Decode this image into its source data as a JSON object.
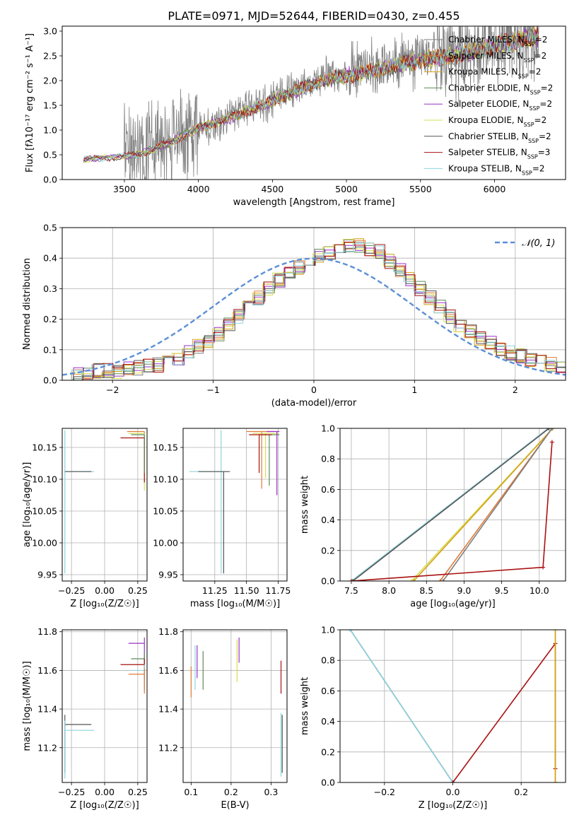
{
  "figure": {
    "title": "PLATE=0971, MJD=52644, FIBERID=0430, z=0.455",
    "colors": {
      "Chabrier MILES": "#7f7f7f",
      "Salpeter MILES": "#e07b39",
      "Kroupa MILES": "#d4a017",
      "Chabrier ELODIE": "#5f8a5a",
      "Salpeter ELODIE": "#9b30c8",
      "Kroupa ELODIE": "#d6df50",
      "Chabrier STELIB": "#555555",
      "Salpeter STELIB": "#aa1111",
      "Kroupa STELIB": "#8fd3de",
      "data": "#808080",
      "normal": "#5b8fd6"
    }
  },
  "chart_data": [
    {
      "id": "spectrum",
      "type": "line",
      "title": "PLATE=0971, MJD=52644, FIBERID=0430, z=0.455",
      "xlabel": "wavelength [Angstrom, rest frame]",
      "ylabel": "Flux [fλ10⁻¹⁷ erg cm⁻² s⁻¹ A⁻¹]",
      "xlim": [
        3080,
        6480
      ],
      "ylim": [
        0,
        3.1
      ],
      "xticks": [
        3500,
        4000,
        4500,
        5000,
        5500,
        6000
      ],
      "yticks": [
        0.0,
        0.5,
        1.0,
        1.5,
        2.0,
        2.5,
        3.0
      ],
      "xtick_labels": [
        "3500",
        "4000",
        "4500",
        "5000",
        "5500",
        "6000"
      ],
      "ytick_labels": [
        "0.0",
        "0.5",
        "1.0",
        "1.5",
        "2.0",
        "2.5",
        "3.0"
      ],
      "legend_position": "right",
      "continuum_x": [
        3220,
        3400,
        3600,
        3800,
        4000,
        4200,
        4400,
        4600,
        4800,
        5000,
        5200,
        5400,
        5600,
        5800,
        6000,
        6200,
        6300
      ],
      "continuum_y": [
        0.42,
        0.45,
        0.52,
        0.75,
        1.05,
        1.25,
        1.5,
        1.75,
        2.0,
        2.15,
        2.25,
        2.4,
        2.5,
        2.6,
        2.75,
        2.9,
        2.95
      ],
      "series": [
        {
          "name": "Chabrier MILES, N_SSP=2"
        },
        {
          "name": "Salpeter MILES, N_SSP=2"
        },
        {
          "name": "Kroupa MILES, N_SSP=2"
        },
        {
          "name": "Chabrier ELODIE, N_SSP=2"
        },
        {
          "name": "Salpeter ELODIE, N_SSP=2"
        },
        {
          "name": "Kroupa ELODIE, N_SSP=2"
        },
        {
          "name": "Chabrier STELIB, N_SSP=2"
        },
        {
          "name": "Salpeter STELIB, N_SSP=3"
        },
        {
          "name": "Kroupa STELIB, N_SSP=2"
        }
      ]
    },
    {
      "id": "residuals",
      "type": "line",
      "xlabel": "(data-model)/error",
      "ylabel": "Normed distribution",
      "xlim": [
        -2.5,
        2.5
      ],
      "ylim": [
        0,
        0.5
      ],
      "xticks": [
        -2,
        -1,
        0,
        1,
        2
      ],
      "yticks": [
        0.0,
        0.1,
        0.2,
        0.3,
        0.4,
        0.5
      ],
      "xtick_labels": [
        "−2",
        "−1",
        "0",
        "1",
        "2"
      ],
      "ytick_labels": [
        "0.0",
        "0.1",
        "0.2",
        "0.3",
        "0.4",
        "0.5"
      ],
      "grid": true,
      "legend": "𝒩(0, 1)",
      "legend_position": "top-right",
      "bin_width": 0.1,
      "bin_start": -2.5,
      "histogram": [
        0.02,
        0.02,
        0.02,
        0.03,
        0.03,
        0.03,
        0.04,
        0.04,
        0.05,
        0.05,
        0.06,
        0.07,
        0.09,
        0.11,
        0.13,
        0.15,
        0.18,
        0.21,
        0.24,
        0.27,
        0.3,
        0.33,
        0.35,
        0.37,
        0.39,
        0.41,
        0.42,
        0.43,
        0.44,
        0.44,
        0.43,
        0.42,
        0.39,
        0.36,
        0.33,
        0.3,
        0.27,
        0.24,
        0.21,
        0.18,
        0.16,
        0.14,
        0.12,
        0.1,
        0.09,
        0.08,
        0.07,
        0.06,
        0.05,
        0.04
      ]
    },
    {
      "id": "age-vs-z",
      "type": "scatter",
      "xlabel": "Z [log₁₀(Z/Z☉)]",
      "ylabel": "age  [log₁₀(age/yr)]",
      "xlim": [
        -0.32,
        0.32
      ],
      "ylim": [
        9.94,
        10.18
      ],
      "xticks": [
        -0.25,
        0.0,
        0.25
      ],
      "yticks": [
        9.95,
        10.0,
        10.05,
        10.1,
        10.15
      ],
      "xtick_labels": [
        "−0.25",
        "0.00",
        "0.25"
      ],
      "ytick_labels": [
        "9.95",
        "10.00",
        "10.05",
        "10.10",
        "10.15"
      ],
      "points": [
        {
          "x": -0.3,
          "y": 10.112,
          "xerr": [
            0,
            0.22
          ],
          "yerr": [
            0.16,
            0.065
          ],
          "c": "Kroupa STELIB"
        },
        {
          "x": -0.3,
          "y": 10.112,
          "xerr": [
            0,
            0.2
          ],
          "yerr": [
            0,
            0
          ],
          "c": "Chabrier STELIB"
        },
        {
          "x": 0.3,
          "y": 10.175,
          "xerr": [
            0.13,
            0
          ],
          "yerr": [
            0.08,
            0
          ],
          "c": "Salpeter MILES"
        },
        {
          "x": 0.3,
          "y": 10.172,
          "xerr": [
            0.12,
            0
          ],
          "yerr": [
            0.09,
            0
          ],
          "c": "Kroupa ELODIE"
        },
        {
          "x": 0.3,
          "y": 10.165,
          "xerr": [
            0.18,
            0
          ],
          "yerr": [
            0.07,
            0
          ],
          "c": "Salpeter STELIB"
        },
        {
          "x": 0.3,
          "y": 10.17,
          "xerr": [
            0.1,
            0
          ],
          "yerr": [
            0.06,
            0
          ],
          "c": "Chabrier ELODIE"
        }
      ]
    },
    {
      "id": "age-vs-mass",
      "type": "scatter",
      "xlabel": "mass [log₁₀(M/M☉)]",
      "xlim": [
        11.0,
        11.82
      ],
      "ylim": [
        9.94,
        10.18
      ],
      "xticks": [
        11.25,
        11.5,
        11.75
      ],
      "yticks": [
        9.95,
        10.0,
        10.05,
        10.1,
        10.15
      ],
      "xtick_labels": [
        "11.25",
        "11.50",
        "11.75"
      ],
      "ytick_labels": [
        "9.95",
        "10.00",
        "10.05",
        "10.10",
        "10.15"
      ],
      "points": [
        {
          "x": 11.3,
          "y": 10.112,
          "xerr": [
            0.25,
            0.05
          ],
          "yerr": [
            0.16,
            0.065
          ],
          "c": "Kroupa STELIB"
        },
        {
          "x": 11.32,
          "y": 10.112,
          "xerr": [
            0.2,
            0.05
          ],
          "yerr": [
            0.16,
            0
          ],
          "c": "Chabrier STELIB"
        },
        {
          "x": 11.62,
          "y": 10.175,
          "xerr": [
            0.12,
            0.1
          ],
          "yerr": [
            0.09,
            0
          ],
          "c": "Salpeter MILES"
        },
        {
          "x": 11.65,
          "y": 10.172,
          "xerr": [
            0.1,
            0.1
          ],
          "yerr": [
            0.07,
            0
          ],
          "c": "Kroupa ELODIE"
        },
        {
          "x": 11.68,
          "y": 10.17,
          "xerr": [
            0.08,
            0.08
          ],
          "yerr": [
            0.08,
            0
          ],
          "c": "Chabrier ELODIE"
        },
        {
          "x": 11.74,
          "y": 10.175,
          "xerr": [
            0.08,
            0.02
          ],
          "yerr": [
            0.1,
            0
          ],
          "c": "Salpeter ELODIE"
        },
        {
          "x": 11.6,
          "y": 10.17,
          "xerr": [
            0.08,
            0.1
          ],
          "yerr": [
            0.06,
            0
          ],
          "c": "Salpeter STELIB"
        }
      ]
    },
    {
      "id": "mass-weight-vs-age",
      "type": "line",
      "xlabel": "age  [log₁₀(age/yr)]",
      "ylabel": "mass weight",
      "xlim": [
        7.35,
        10.35
      ],
      "ylim": [
        0,
        1.0
      ],
      "xticks": [
        7.5,
        8.0,
        8.5,
        9.0,
        9.5,
        10.0
      ],
      "yticks": [
        0.0,
        0.2,
        0.4,
        0.6,
        0.8,
        1.0
      ],
      "xtick_labels": [
        "7.5",
        "8.0",
        "8.5",
        "9.0",
        "9.5",
        "10.0"
      ],
      "ytick_labels": [
        "0.0",
        "0.2",
        "0.4",
        "0.6",
        "0.8",
        "1.0"
      ],
      "grid": true,
      "lines": [
        {
          "c": "Kroupa STELIB",
          "x": [
            7.5,
            10.12
          ],
          "y": [
            0,
            1.0
          ]
        },
        {
          "c": "Chabrier STELIB",
          "x": [
            7.52,
            10.13
          ],
          "y": [
            0,
            1.0
          ]
        },
        {
          "c": "Kroupa ELODIE",
          "x": [
            8.3,
            10.18
          ],
          "y": [
            0,
            1.0
          ]
        },
        {
          "c": "Kroupa MILES",
          "x": [
            8.33,
            10.18
          ],
          "y": [
            0,
            1.0
          ]
        },
        {
          "c": "Salpeter MILES",
          "x": [
            8.68,
            10.17
          ],
          "y": [
            0,
            1.0
          ]
        },
        {
          "c": "Chabrier MILES",
          "x": [
            8.72,
            10.17
          ],
          "y": [
            0,
            1.0
          ]
        },
        {
          "c": "Salpeter STELIB",
          "x": [
            7.5,
            10.05,
            10.17
          ],
          "y": [
            0,
            0.09,
            0.91
          ]
        }
      ]
    },
    {
      "id": "mass-vs-z",
      "type": "scatter",
      "xlabel": "Z [log₁₀(Z/Z☉)]",
      "ylabel": "mass [log₁₀(M/M☉)]",
      "xlim": [
        -0.32,
        0.32
      ],
      "ylim": [
        11.02,
        11.81
      ],
      "xticks": [
        -0.25,
        0.0,
        0.25
      ],
      "yticks": [
        11.2,
        11.4,
        11.6,
        11.8
      ],
      "xtick_labels": [
        "−0.25",
        "0.00",
        "0.25"
      ],
      "ytick_labels": [
        "11.2",
        "11.4",
        "11.6",
        "11.8"
      ],
      "points": [
        {
          "x": -0.3,
          "y": 11.32,
          "xerr": [
            0,
            0.2
          ],
          "yerr": [
            0.25,
            0.05
          ],
          "c": "Chabrier STELIB"
        },
        {
          "x": -0.3,
          "y": 11.29,
          "xerr": [
            0,
            0.22
          ],
          "yerr": [
            0.25,
            0.05
          ],
          "c": "Kroupa STELIB"
        },
        {
          "x": 0.3,
          "y": 11.74,
          "xerr": [
            0.12,
            0
          ],
          "yerr": [
            0.1,
            0.03
          ],
          "c": "Salpeter ELODIE"
        },
        {
          "x": 0.3,
          "y": 11.66,
          "xerr": [
            0.1,
            0
          ],
          "yerr": [
            0.1,
            0.03
          ],
          "c": "Chabrier ELODIE"
        },
        {
          "x": 0.3,
          "y": 11.63,
          "xerr": [
            0.18,
            0
          ],
          "yerr": [
            0.13,
            0.03
          ],
          "c": "Salpeter STELIB"
        },
        {
          "x": 0.3,
          "y": 11.6,
          "xerr": [
            0.1,
            0
          ],
          "yerr": [
            0.1,
            0.03
          ],
          "c": "Kroupa STELIB"
        },
        {
          "x": 0.3,
          "y": 11.58,
          "xerr": [
            0.12,
            0
          ],
          "yerr": [
            0.1,
            0.03
          ],
          "c": "Salpeter MILES"
        }
      ]
    },
    {
      "id": "mass-vs-ebv",
      "type": "scatter",
      "xlabel": "E(B-V)",
      "xlim": [
        0.08,
        0.34
      ],
      "ylim": [
        11.02,
        11.81
      ],
      "xticks": [
        0.1,
        0.2,
        0.3
      ],
      "yticks": [
        11.2,
        11.4,
        11.6,
        11.8
      ],
      "xtick_labels": [
        "0.1",
        "0.2",
        "0.3"
      ],
      "ytick_labels": [
        "11.2",
        "11.4",
        "11.6",
        "11.8"
      ],
      "points": [
        {
          "x": 0.1,
          "y": 11.58,
          "yerr": [
            0.12,
            0.04
          ],
          "c": "Salpeter MILES"
        },
        {
          "x": 0.11,
          "y": 11.63,
          "yerr": [
            0.13,
            0.1
          ],
          "c": "Kroupa STELIB"
        },
        {
          "x": 0.115,
          "y": 11.66,
          "yerr": [
            0.1,
            0.07
          ],
          "c": "Salpeter ELODIE"
        },
        {
          "x": 0.13,
          "y": 11.6,
          "yerr": [
            0.1,
            0.1
          ],
          "c": "Chabrier ELODIE"
        },
        {
          "x": 0.215,
          "y": 11.66,
          "yerr": [
            0.12,
            0.1
          ],
          "c": "Kroupa ELODIE"
        },
        {
          "x": 0.22,
          "y": 11.74,
          "yerr": [
            0.1,
            0.03
          ],
          "c": "Salpeter ELODIE"
        },
        {
          "x": 0.325,
          "y": 11.6,
          "yerr": [
            0.12,
            0.05
          ],
          "c": "Salpeter STELIB"
        },
        {
          "x": 0.325,
          "y": 11.3,
          "yerr": [
            0.25,
            0.08
          ],
          "c": "Kroupa STELIB"
        },
        {
          "x": 0.328,
          "y": 11.32,
          "yerr": [
            0.25,
            0.05
          ],
          "c": "Chabrier STELIB"
        }
      ]
    },
    {
      "id": "mass-weight-vs-z",
      "type": "line",
      "xlabel": "Z [log₁₀(Z/Z☉)]",
      "ylabel": "mass weight",
      "xlim": [
        -0.33,
        0.33
      ],
      "ylim": [
        0,
        1.0
      ],
      "xticks": [
        -0.2,
        0.0,
        0.2
      ],
      "yticks": [
        0.0,
        0.2,
        0.4,
        0.6,
        0.8,
        1.0
      ],
      "xtick_labels": [
        "−0.2",
        "0.0",
        "0.2"
      ],
      "ytick_labels": [
        "0.0",
        "0.2",
        "0.4",
        "0.6",
        "0.8",
        "1.0"
      ],
      "grid": true,
      "lines": [
        {
          "c": "Chabrier STELIB",
          "x": [
            -0.3,
            0.0
          ],
          "y": [
            1.0,
            0
          ]
        },
        {
          "c": "Kroupa STELIB",
          "x": [
            -0.3,
            0.0
          ],
          "y": [
            1.0,
            0
          ]
        },
        {
          "c": "Salpeter STELIB",
          "x": [
            0.0,
            0.3,
            0.3
          ],
          "y": [
            0,
            0.91,
            0.09
          ]
        },
        {
          "c": "Kroupa ELODIE",
          "x": [
            0.3,
            0.3
          ],
          "y": [
            0,
            1.0
          ]
        },
        {
          "c": "Kroupa MILES",
          "x": [
            0.3,
            0.3
          ],
          "y": [
            0,
            1.0
          ]
        }
      ]
    }
  ]
}
